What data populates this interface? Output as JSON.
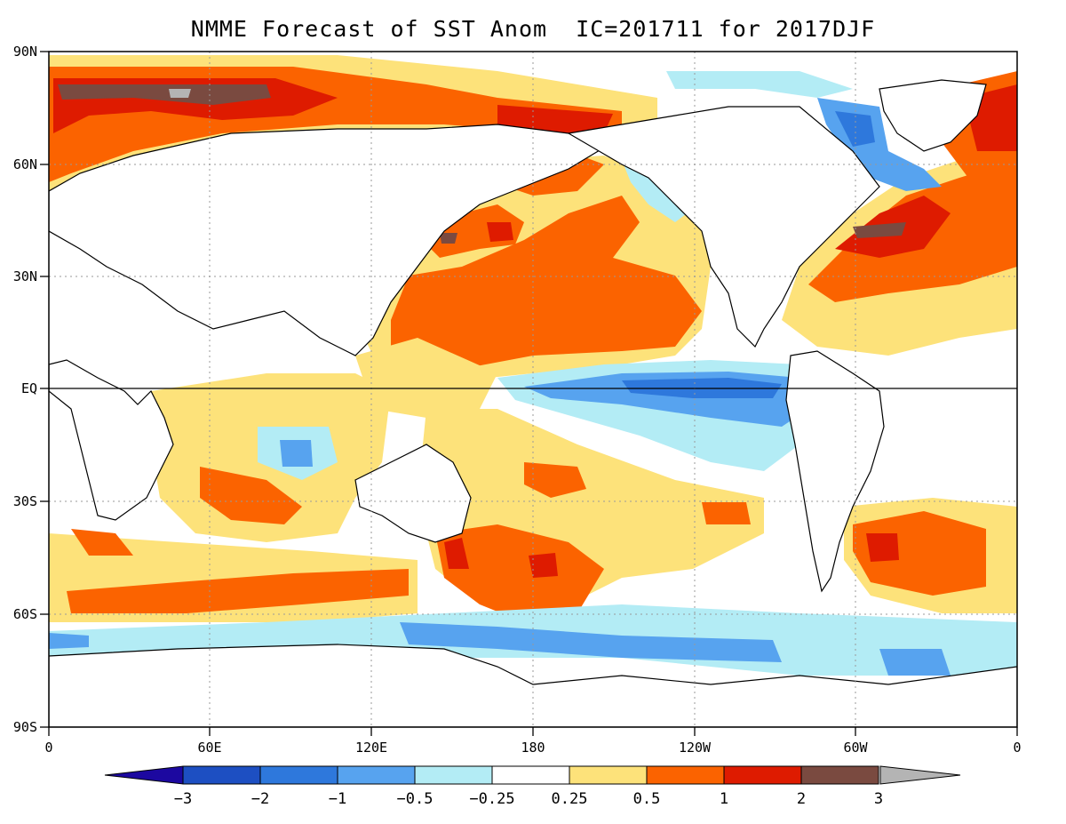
{
  "title": "NMME Forecast of SST Anom  IC=201711 for 2017DJF",
  "axes": {
    "lat_labels": [
      "90N",
      "60N",
      "30N",
      "EQ",
      "30S",
      "60S",
      "90S"
    ],
    "lon_labels": [
      "0",
      "60E",
      "120E",
      "180",
      "120W",
      "60W",
      "0"
    ]
  },
  "colorbar": {
    "labels": [
      "−3",
      "−2",
      "−1",
      "−0.5",
      "−0.25",
      "0.25",
      "0.5",
      "1",
      "2",
      "3"
    ],
    "colors": [
      "#1d4fc2",
      "#2e78dc",
      "#57a3ef",
      "#b3ecf5",
      "#ffffff",
      "#fde27a",
      "#fb6300",
      "#de1b00",
      "#7a4a40"
    ],
    "under_color": "#1c08a0",
    "over_color": "#b4b4b4"
  },
  "colors": {
    "strong_cold": "#1d4fc2",
    "cold": "#2e78dc",
    "cool": "#57a3ef",
    "slight_cool": "#b3ecf5",
    "slight_warm": "#fde27a",
    "warm": "#fb6300",
    "hot": "#de1b00",
    "very_hot": "#7a4a40",
    "extreme": "#b4b4b4"
  }
}
